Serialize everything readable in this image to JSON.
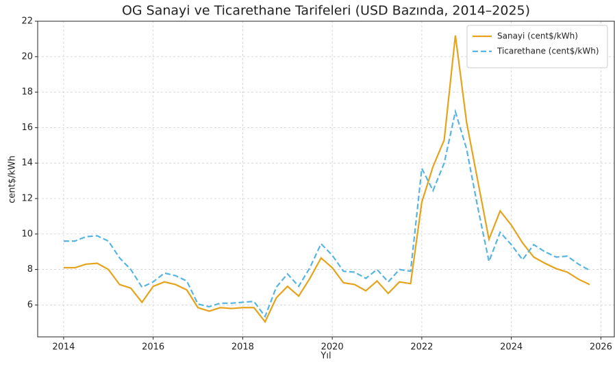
{
  "chart_data": {
    "type": "line",
    "title": "OG Sanayi ve Ticarethane Tarifeleri (USD Bazında, 2014–2025)",
    "xlabel": "Yıl",
    "ylabel": "cent$/kWh",
    "x": [
      2014,
      2014.25,
      2014.5,
      2014.75,
      2015,
      2015.25,
      2015.5,
      2015.75,
      2016,
      2016.25,
      2016.5,
      2016.75,
      2017,
      2017.25,
      2017.5,
      2017.75,
      2018,
      2018.25,
      2018.5,
      2018.75,
      2019,
      2019.25,
      2019.5,
      2019.75,
      2020,
      2020.25,
      2020.5,
      2020.75,
      2021,
      2021.25,
      2021.5,
      2021.75,
      2022,
      2022.25,
      2022.5,
      2022.75,
      2023,
      2023.25,
      2023.5,
      2023.75,
      2024,
      2024.25,
      2024.5,
      2024.75,
      2025,
      2025.25,
      2025.5,
      2025.75
    ],
    "series": [
      {
        "name": "Sanayi (cent$/kWh)",
        "color": "#e6a219",
        "linestyle": "solid",
        "values": [
          8.1,
          8.1,
          8.3,
          8.35,
          8.0,
          7.15,
          6.95,
          6.15,
          7.05,
          7.3,
          7.15,
          6.85,
          5.85,
          5.65,
          5.85,
          5.8,
          5.85,
          5.85,
          5.05,
          6.4,
          7.05,
          6.5,
          7.5,
          8.65,
          8.1,
          7.25,
          7.15,
          6.8,
          7.35,
          6.65,
          7.3,
          7.2,
          11.8,
          13.8,
          15.3,
          21.2,
          16.3,
          13.0,
          9.7,
          11.3,
          10.5,
          9.5,
          8.7,
          8.35,
          8.05,
          7.85,
          7.45,
          7.15
        ]
      },
      {
        "name": "Ticarethane (cent$/kWh)",
        "color": "#56b4e0",
        "linestyle": "dashed",
        "values": [
          9.6,
          9.6,
          9.85,
          9.9,
          9.6,
          8.65,
          8.0,
          7.0,
          7.3,
          7.8,
          7.65,
          7.35,
          6.05,
          5.9,
          6.1,
          6.1,
          6.15,
          6.2,
          5.35,
          7.0,
          7.75,
          7.05,
          8.1,
          9.45,
          8.8,
          7.9,
          7.85,
          7.5,
          8.0,
          7.3,
          8.0,
          7.9,
          13.7,
          12.45,
          14.0,
          16.9,
          14.8,
          11.5,
          8.45,
          10.1,
          9.4,
          8.55,
          9.4,
          9.0,
          8.7,
          8.75,
          8.3,
          7.95
        ]
      }
    ],
    "xlim": [
      2013.42,
      2026.3
    ],
    "ylim": [
      4.2,
      22
    ],
    "xticks": [
      2014,
      2016,
      2018,
      2020,
      2022,
      2024,
      2026
    ],
    "yticks": [
      6,
      8,
      10,
      12,
      14,
      16,
      18,
      20,
      22
    ],
    "grid": true,
    "legend": "upper right"
  }
}
